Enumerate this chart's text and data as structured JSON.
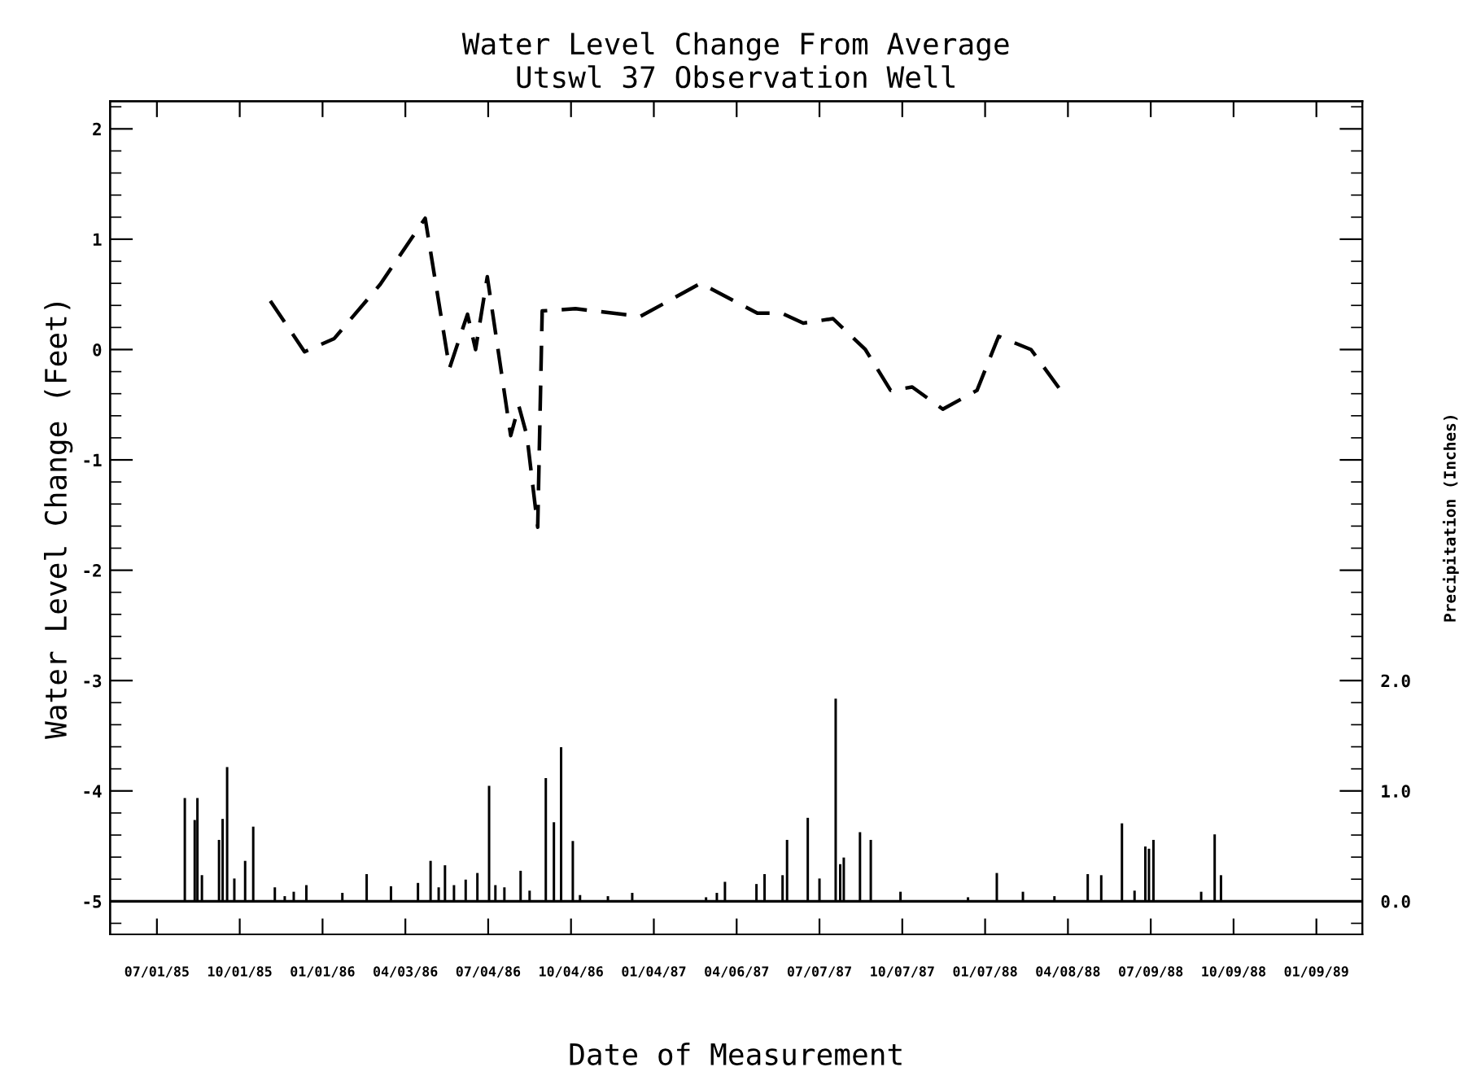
{
  "chart_data": {
    "type": "line",
    "title": "Water Level Change From Average\nUtswl 37 Observation Well",
    "xlabel": "Date of Measurement",
    "ylabel": "Water Level Change (Feet)",
    "y2label": "Precipitation (Inches)",
    "xlim": [
      "1985-05-10",
      "1989-03-01"
    ],
    "xticks": [
      {
        "value": "1985-07-01",
        "label": "07/01/85"
      },
      {
        "value": "1985-10-01",
        "label": "10/01/85"
      },
      {
        "value": "1986-01-01",
        "label": "01/01/86"
      },
      {
        "value": "1986-04-03",
        "label": "04/03/86"
      },
      {
        "value": "1986-07-04",
        "label": "07/04/86"
      },
      {
        "value": "1986-10-04",
        "label": "10/04/86"
      },
      {
        "value": "1987-01-04",
        "label": "01/04/87"
      },
      {
        "value": "1987-04-06",
        "label": "04/06/87"
      },
      {
        "value": "1987-07-07",
        "label": "07/07/87"
      },
      {
        "value": "1987-10-07",
        "label": "10/07/87"
      },
      {
        "value": "1988-01-07",
        "label": "01/07/88"
      },
      {
        "value": "1988-04-08",
        "label": "04/08/88"
      },
      {
        "value": "1988-07-09",
        "label": "07/09/88"
      },
      {
        "value": "1988-10-09",
        "label": "10/09/88"
      },
      {
        "value": "1989-01-09",
        "label": "01/09/89"
      }
    ],
    "ylim": [
      -5.3,
      2.25
    ],
    "yticks": [
      -5,
      -4,
      -3,
      -2,
      -1,
      0,
      1,
      2
    ],
    "y2lim": [
      -0.3,
      7.25
    ],
    "y2ticks": [
      {
        "value": 0,
        "label": "0.0"
      },
      {
        "value": 1,
        "label": "1.0"
      },
      {
        "value": 2,
        "label": "2.0"
      },
      {
        "value": 3,
        "label": null
      },
      {
        "value": 4,
        "label": null
      },
      {
        "value": 5,
        "label": null
      },
      {
        "value": 6,
        "label": null
      },
      {
        "value": 7,
        "label": null
      }
    ],
    "grid": false,
    "legend": false,
    "ref_lines": [
      {
        "axis": "y2",
        "value": 0,
        "color": "#000000",
        "line_style": "solid"
      }
    ],
    "series": [
      {
        "color": "#000000",
        "line_style": "dashed",
        "marker": "none",
        "x": [
          "1985-11-04",
          "1985-12-12",
          "1986-01-14",
          "1986-03-06",
          "1986-04-25",
          "1986-05-22",
          "1986-06-11",
          "1986-06-20",
          "1986-07-03",
          "1986-07-29",
          "1986-08-07",
          "1986-08-16",
          "1986-08-28",
          "1986-09-02",
          "1986-10-09",
          "1986-12-20",
          "1987-02-25",
          "1987-04-29",
          "1987-05-26",
          "1987-06-19",
          "1987-07-22",
          "1987-08-27",
          "1987-09-24",
          "1987-10-18",
          "1987-11-21",
          "1987-12-29",
          "1988-01-22",
          "1988-02-27",
          "1988-03-31"
        ],
        "values": [
          0.44,
          -0.02,
          0.1,
          0.59,
          1.19,
          -0.17,
          0.32,
          0.0,
          0.66,
          -0.78,
          -0.51,
          -0.78,
          -1.61,
          0.35,
          0.37,
          0.3,
          0.6,
          0.33,
          0.33,
          0.24,
          0.28,
          0.0,
          -0.37,
          -0.34,
          -0.54,
          -0.37,
          0.12,
          0.0,
          -0.37
        ]
      },
      {
        "type": "bar",
        "axis": "y2",
        "color": "#000000",
        "x": [
          "1985-08-01",
          "1985-08-12",
          "1985-08-15",
          "1985-08-20",
          "1985-09-08",
          "1985-09-12",
          "1985-09-17",
          "1985-09-25",
          "1985-10-07",
          "1985-10-16",
          "1985-11-09",
          "1985-11-20",
          "1985-11-30",
          "1985-12-14",
          "1986-01-23",
          "1986-02-19",
          "1986-03-18",
          "1986-04-17",
          "1986-05-01",
          "1986-05-10",
          "1986-05-17",
          "1986-05-27",
          "1986-06-09",
          "1986-06-22",
          "1986-07-05",
          "1986-07-12",
          "1986-07-22",
          "1986-08-09",
          "1986-08-19",
          "1986-09-06",
          "1986-09-15",
          "1986-09-23",
          "1986-10-06",
          "1986-10-14",
          "1986-11-14",
          "1986-12-11",
          "1987-03-03",
          "1987-03-15",
          "1987-03-24",
          "1987-04-28",
          "1987-05-07",
          "1987-05-27",
          "1987-06-01",
          "1987-06-24",
          "1987-07-07",
          "1987-07-25",
          "1987-07-30",
          "1987-08-03",
          "1987-08-21",
          "1987-09-02",
          "1987-10-05",
          "1987-12-19",
          "1988-01-20",
          "1988-02-18",
          "1988-03-24",
          "1988-04-30",
          "1988-05-15",
          "1988-06-07",
          "1988-06-21",
          "1988-07-03",
          "1988-07-07",
          "1988-07-12",
          "1988-09-03",
          "1988-09-18",
          "1988-09-25"
        ],
        "values": [
          0.93,
          0.73,
          0.93,
          0.23,
          0.55,
          0.74,
          1.21,
          0.2,
          0.36,
          0.67,
          0.12,
          0.04,
          0.08,
          0.14,
          0.07,
          0.24,
          0.13,
          0.16,
          0.36,
          0.12,
          0.32,
          0.14,
          0.19,
          0.25,
          1.04,
          0.14,
          0.12,
          0.27,
          0.09,
          1.11,
          0.71,
          1.39,
          0.54,
          0.05,
          0.04,
          0.07,
          0.03,
          0.07,
          0.17,
          0.15,
          0.24,
          0.23,
          0.55,
          0.75,
          0.2,
          1.83,
          0.33,
          0.39,
          0.62,
          0.55,
          0.08,
          0.03,
          0.25,
          0.08,
          0.04,
          0.24,
          0.23,
          0.7,
          0.09,
          0.49,
          0.47,
          0.55,
          0.08,
          0.6,
          0.23
        ]
      }
    ]
  }
}
